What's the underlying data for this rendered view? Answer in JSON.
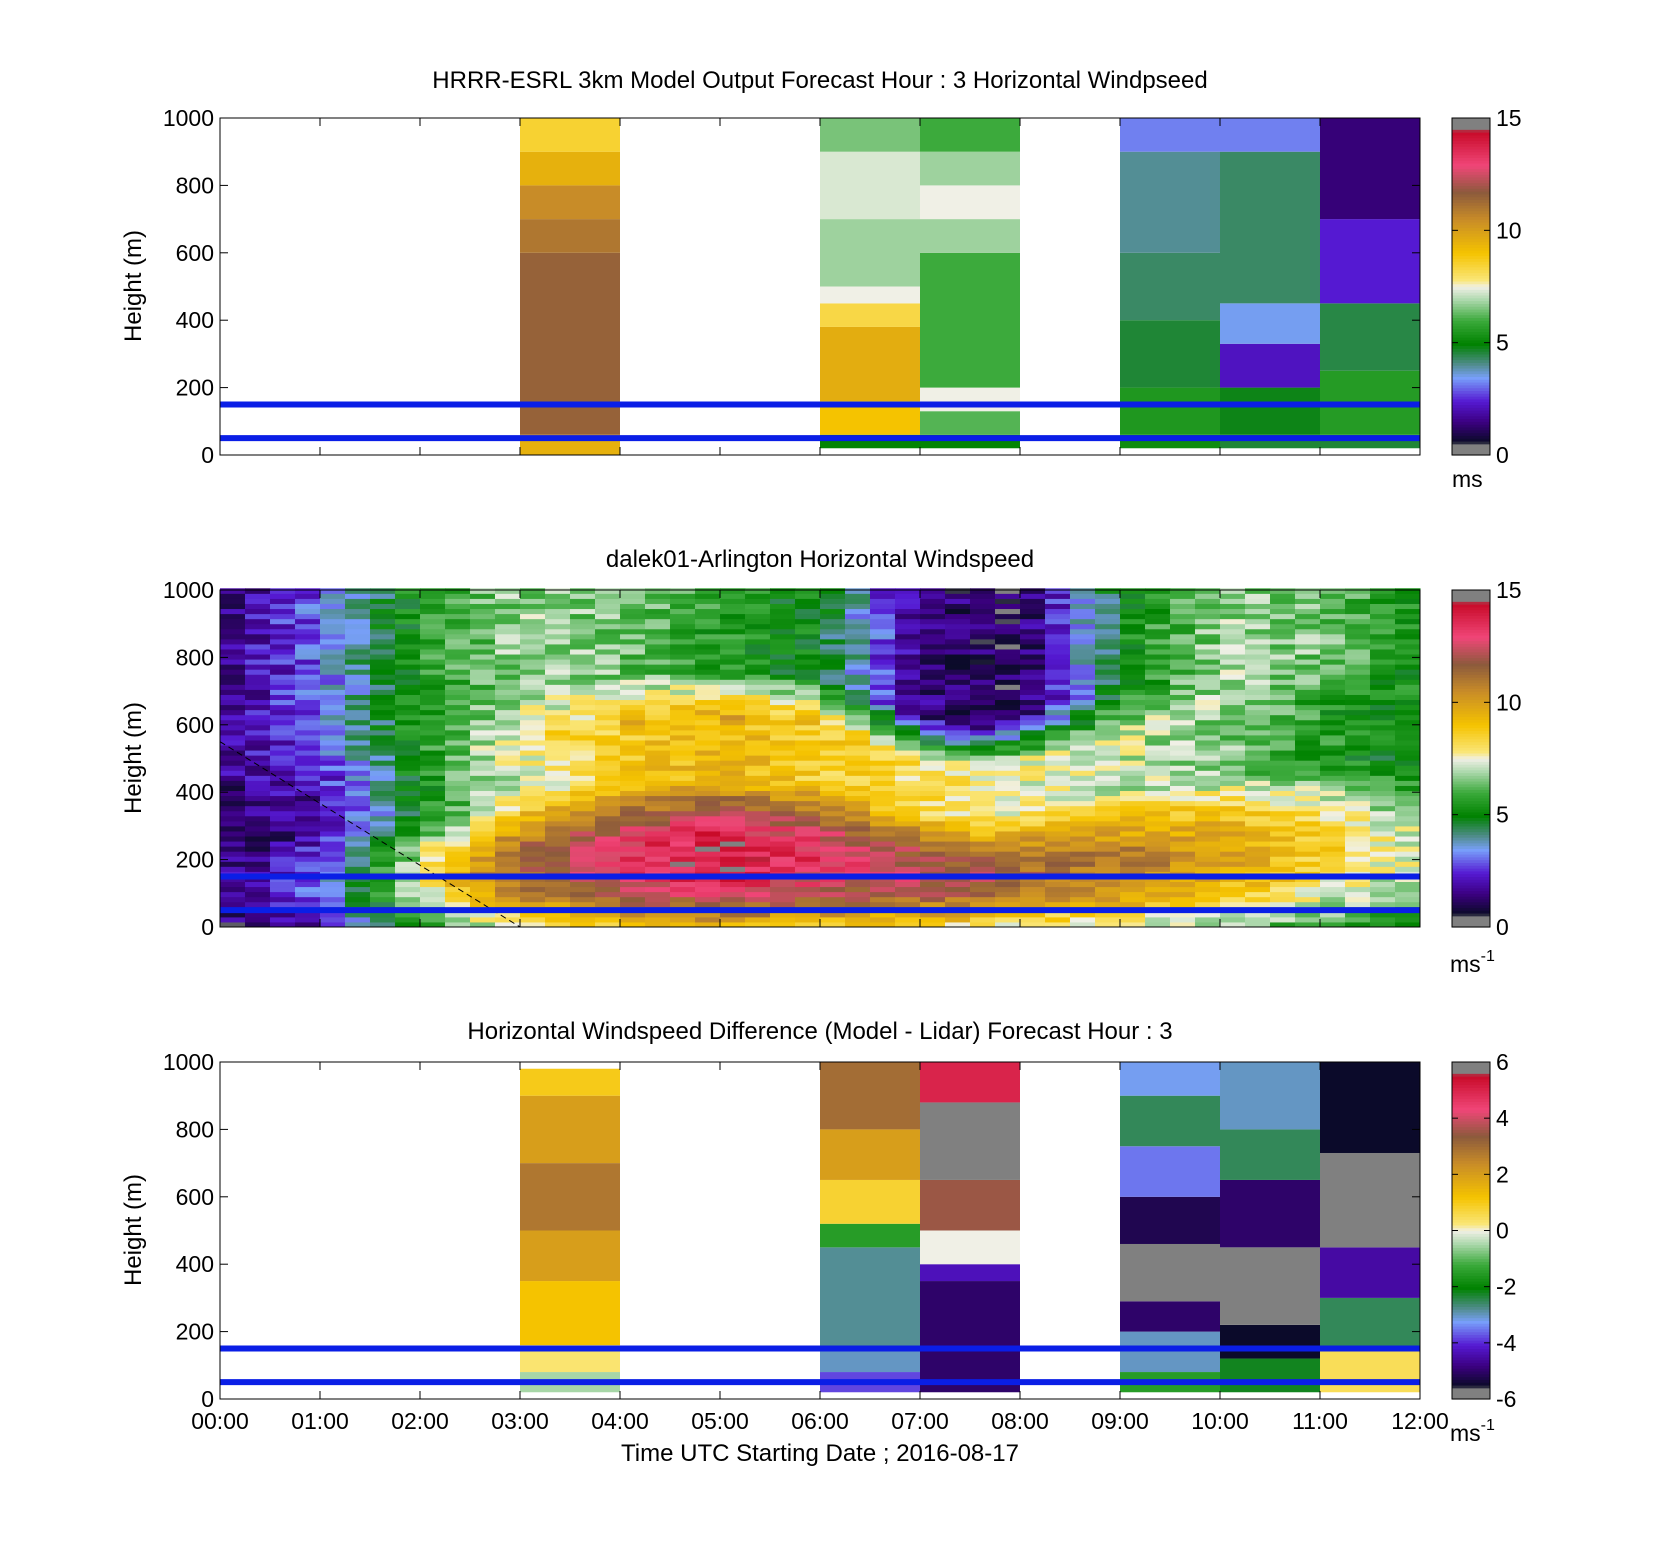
{
  "figure": {
    "xlabel": "Time UTC  Starting Date ; 2016-08-17",
    "x_ticks": [
      "00:00",
      "01:00",
      "02:00",
      "03:00",
      "04:00",
      "05:00",
      "06:00",
      "07:00",
      "08:00",
      "09:00",
      "10:00",
      "11:00",
      "12:00"
    ]
  },
  "chart_data": [
    {
      "type": "heatmap",
      "title": "HRRR-ESRL 3km Model Output   Forecast Hour : 3 Horizontal Windpseed",
      "ylabel": "Height (m)",
      "xlim": [
        0,
        12
      ],
      "ylim": [
        0,
        1000
      ],
      "y_ticks": [
        "0",
        "200",
        "400",
        "600",
        "800",
        "1000"
      ],
      "colorbar": {
        "min": 0,
        "max": 15,
        "ticks": [
          "0",
          "5",
          "10",
          "15"
        ],
        "unit": "ms",
        "unit_sup": ""
      },
      "reference_lines_m": [
        50,
        150
      ],
      "reference_line_color": "#0a1ee6",
      "columns_hour_start": [
        3,
        6,
        7,
        9,
        10,
        11
      ],
      "column_profiles_ms": {
        "3": [
          [
            0,
            60,
            9.5
          ],
          [
            60,
            600,
            11.5
          ],
          [
            600,
            700,
            11.0
          ],
          [
            700,
            800,
            10.5
          ],
          [
            800,
            900,
            9.5
          ],
          [
            900,
            1000,
            8.5
          ]
        ],
        "6": [
          [
            20,
            60,
            5.0
          ],
          [
            60,
            160,
            9.0
          ],
          [
            160,
            380,
            9.6
          ],
          [
            380,
            450,
            8.3
          ],
          [
            450,
            500,
            7.5
          ],
          [
            500,
            700,
            6.8
          ],
          [
            700,
            900,
            7.3
          ],
          [
            900,
            1000,
            6.5
          ]
        ],
        "7": [
          [
            20,
            60,
            5.0
          ],
          [
            60,
            130,
            6.2
          ],
          [
            130,
            200,
            7.5
          ],
          [
            200,
            600,
            6.0
          ],
          [
            600,
            700,
            6.8
          ],
          [
            700,
            800,
            7.5
          ],
          [
            800,
            900,
            6.8
          ],
          [
            900,
            1000,
            6.0
          ]
        ],
        "9": [
          [
            20,
            60,
            5.2
          ],
          [
            60,
            200,
            5.5
          ],
          [
            200,
            400,
            4.6
          ],
          [
            400,
            600,
            4.3
          ],
          [
            600,
            900,
            4.0
          ],
          [
            900,
            1000,
            3.2
          ]
        ],
        "10": [
          [
            20,
            60,
            4.6
          ],
          [
            60,
            200,
            4.8
          ],
          [
            200,
            330,
            2.2
          ],
          [
            330,
            450,
            3.5
          ],
          [
            450,
            900,
            4.3
          ],
          [
            900,
            1000,
            3.2
          ]
        ],
        "11": [
          [
            20,
            60,
            4.6
          ],
          [
            60,
            250,
            5.6
          ],
          [
            250,
            450,
            4.5
          ],
          [
            450,
            700,
            2.4
          ],
          [
            700,
            1000,
            1.4
          ]
        ]
      }
    },
    {
      "type": "heatmap",
      "title": "dalek01-Arlington  Horizontal Windspeed",
      "ylabel": "Height (m)",
      "xlim": [
        0,
        12
      ],
      "ylim": [
        0,
        1000
      ],
      "y_ticks": [
        "0",
        "200",
        "400",
        "600",
        "800",
        "1000"
      ],
      "colorbar": {
        "min": 0,
        "max": 15,
        "ticks": [
          "0",
          "5",
          "10",
          "15"
        ],
        "unit": "ms",
        "unit_sup": "-1"
      },
      "reference_lines_m": [
        50,
        150
      ],
      "reference_line_color": "#0a1ee6",
      "dashed_line_points": [
        [
          0,
          550
        ],
        [
          3,
          0
        ]
      ],
      "data_end_hour": 11.8,
      "column_width_hours": 0.25,
      "layer_depth_m": 15,
      "jet_speed_by_hour": [
        [
          0,
          1.5
        ],
        [
          1,
          2.5
        ],
        [
          1.5,
          4.5
        ],
        [
          2.2,
          7.5
        ],
        [
          3,
          10
        ],
        [
          4,
          11.5
        ],
        [
          5,
          12.5
        ],
        [
          6,
          11.5
        ],
        [
          6.8,
          11
        ],
        [
          7.5,
          10.5
        ],
        [
          8,
          10
        ],
        [
          9,
          9.5
        ],
        [
          10,
          8.8
        ],
        [
          11,
          7.5
        ],
        [
          11.8,
          6.5
        ]
      ],
      "boundary_layer_top_m_by_hour": [
        [
          0,
          300
        ],
        [
          1,
          400
        ],
        [
          2,
          450
        ],
        [
          3,
          550
        ],
        [
          4,
          600
        ],
        [
          5,
          620
        ],
        [
          6,
          600
        ],
        [
          6.8,
          500
        ],
        [
          7.5,
          450
        ],
        [
          8,
          480
        ],
        [
          9,
          550
        ],
        [
          10,
          630
        ],
        [
          11,
          680
        ],
        [
          11.8,
          680
        ]
      ],
      "upper_speed_by_hour": [
        [
          0,
          1.5
        ],
        [
          1,
          3
        ],
        [
          2,
          5.5
        ],
        [
          3,
          6.8
        ],
        [
          4,
          6.5
        ],
        [
          5,
          5.5
        ],
        [
          6,
          5
        ],
        [
          7,
          1.5
        ],
        [
          8,
          1
        ],
        [
          9,
          5
        ],
        [
          10,
          6.8
        ],
        [
          11,
          6.5
        ],
        [
          11.8,
          5.5
        ]
      ]
    },
    {
      "type": "heatmap",
      "title": "Horizontal Windspeed Difference (Model - Lidar) Forecast Hour : 3",
      "ylabel": "Height (m)",
      "xlabel": "Time UTC  Starting Date ; 2016-08-17",
      "xlim": [
        0,
        12
      ],
      "ylim": [
        0,
        1000
      ],
      "y_ticks": [
        "0",
        "200",
        "400",
        "600",
        "800",
        "1000"
      ],
      "colorbar": {
        "min": -6,
        "max": 6,
        "ticks": [
          "-6",
          "-4",
          "-2",
          "0",
          "2",
          "4",
          "6"
        ],
        "unit": "ms",
        "unit_sup": "-1"
      },
      "reference_lines_m": [
        50,
        150
      ],
      "reference_line_color": "#0a1ee6",
      "columns_hour_start": [
        3,
        6,
        7,
        9,
        10,
        11
      ],
      "column_profiles_ms": {
        "3": [
          [
            20,
            80,
            -0.5
          ],
          [
            80,
            160,
            0.3
          ],
          [
            160,
            350,
            1.2
          ],
          [
            350,
            500,
            2.0
          ],
          [
            500,
            700,
            2.8
          ],
          [
            700,
            900,
            2.0
          ],
          [
            900,
            980,
            1.0
          ]
        ],
        "6": [
          [
            20,
            80,
            -3.8
          ],
          [
            80,
            150,
            -3.0
          ],
          [
            150,
            450,
            -2.8
          ],
          [
            450,
            520,
            -1.5
          ],
          [
            520,
            650,
            0.8
          ],
          [
            650,
            800,
            2.0
          ],
          [
            800,
            1000,
            3.0
          ]
        ],
        "7": [
          [
            20,
            350,
            -5.0
          ],
          [
            350,
            400,
            -4.3
          ],
          [
            400,
            500,
            0.0
          ],
          [
            500,
            650,
            3.5
          ],
          [
            650,
            880,
            -6.5
          ],
          [
            880,
            1000,
            5.0
          ]
        ],
        "9": [
          [
            20,
            80,
            -1.5
          ],
          [
            80,
            200,
            -3.0
          ],
          [
            200,
            290,
            -5.0
          ],
          [
            290,
            460,
            -6.5
          ],
          [
            460,
            600,
            -5.2
          ],
          [
            600,
            750,
            -3.5
          ],
          [
            750,
            900,
            -2.5
          ],
          [
            900,
            1000,
            -3.2
          ]
        ],
        "10": [
          [
            20,
            120,
            -2.2
          ],
          [
            120,
            220,
            -5.5
          ],
          [
            220,
            450,
            -6.5
          ],
          [
            450,
            650,
            -5.0
          ],
          [
            650,
            800,
            -2.5
          ],
          [
            800,
            1000,
            -3.0
          ]
        ],
        "11": [
          [
            20,
            150,
            0.5
          ],
          [
            150,
            300,
            -2.5
          ],
          [
            300,
            450,
            -4.5
          ],
          [
            450,
            730,
            -6.5
          ],
          [
            730,
            1000,
            -5.5
          ]
        ]
      }
    }
  ]
}
